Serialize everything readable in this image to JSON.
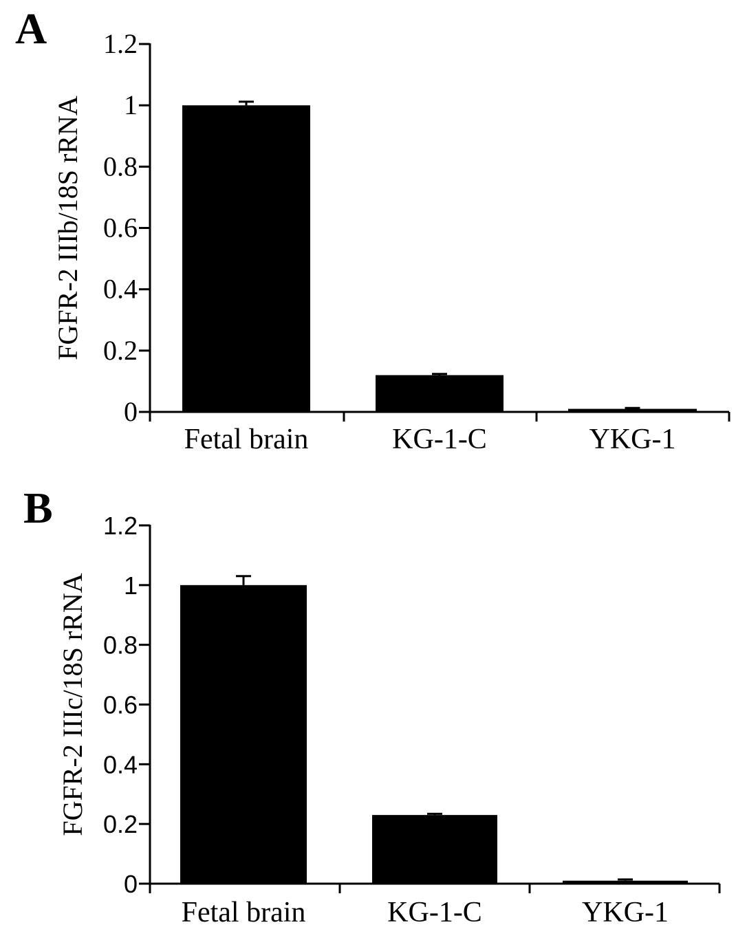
{
  "chart_data": [
    {
      "panel": "A",
      "type": "bar",
      "categories": [
        "Fetal brain",
        "KG-1-C",
        "YKG-1"
      ],
      "values": [
        1.0,
        0.12,
        0.01
      ],
      "errors": [
        0.012,
        0.004,
        0.003
      ],
      "ylabel": "FGFR-2 IIIb/18S rRNA",
      "xlabel": "",
      "ylim": [
        0,
        1.2
      ],
      "yticks": [
        0,
        0.2,
        0.4,
        0.6,
        0.8,
        1,
        1.2
      ],
      "ytick_labels": [
        "0",
        "0.2",
        "0.4",
        "0.6",
        "0.8",
        "1",
        "1.2"
      ],
      "bar_color": "#000000",
      "grid": false,
      "legend": "none"
    },
    {
      "panel": "B",
      "type": "bar",
      "categories": [
        "Fetal brain",
        "KG-1-C",
        "YKG-1"
      ],
      "values": [
        1.0,
        0.23,
        0.01
      ],
      "errors": [
        0.03,
        0.004,
        0.004
      ],
      "ylabel": "FGFR-2 IIIc/18S rRNA",
      "xlabel": "",
      "ylim": [
        0,
        1.2
      ],
      "yticks": [
        0,
        0.2,
        0.4,
        0.6,
        0.8,
        1,
        1.2
      ],
      "ytick_labels": [
        "0",
        "0.2",
        "0.4",
        "0.6",
        "0.8",
        "1",
        "1.2"
      ],
      "bar_color": "#000000",
      "grid": false,
      "legend": "none"
    }
  ]
}
